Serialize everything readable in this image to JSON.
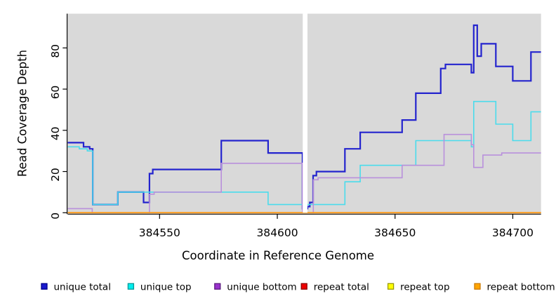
{
  "chart_data": {
    "type": "line",
    "style": "step",
    "xlabel": "Coordinate in Reference Genome",
    "ylabel": "Read Coverage Depth",
    "xlim": [
      384511,
      384712
    ],
    "ylim": [
      0,
      96
    ],
    "x_ticks": [
      "384550",
      "384600",
      "384650",
      "384700"
    ],
    "x_tick_values": [
      384550,
      384600,
      384650,
      384700
    ],
    "y_ticks": [
      "0",
      "20",
      "40",
      "60",
      "80"
    ],
    "y_tick_values": [
      0,
      20,
      40,
      60,
      80
    ],
    "grid": false,
    "plot_bg": "#d9d9d9",
    "legend_position": "bottom",
    "gap_band": {
      "x0": 384610.8,
      "x1": 384612.8,
      "color": "#ffffff"
    },
    "series": [
      {
        "name": "unique total",
        "line_color": "#2424ce",
        "legend_fill": "#1a1acd",
        "legend_border": "#00008b",
        "line_width": 2.2,
        "steps": [
          [
            384511.0,
            34
          ],
          [
            384517.7,
            32
          ],
          [
            384520.3,
            31
          ],
          [
            384521.6,
            4
          ],
          [
            384532.3,
            10
          ],
          [
            384543.2,
            5
          ],
          [
            384545.7,
            19
          ],
          [
            384547.1,
            21
          ],
          [
            384576.2,
            35
          ],
          [
            384596.1,
            29
          ],
          [
            384610.7,
            2
          ],
          [
            384612.8,
            3
          ],
          [
            384613.8,
            5
          ],
          [
            384615.2,
            18
          ],
          [
            384616.6,
            20
          ],
          [
            384628.7,
            31
          ],
          [
            384635.2,
            39
          ],
          [
            384653.0,
            45
          ],
          [
            384658.8,
            58
          ],
          [
            384669.4,
            70
          ],
          [
            384671.4,
            72
          ],
          [
            384682.4,
            68
          ],
          [
            384683.4,
            91
          ],
          [
            384684.9,
            76
          ],
          [
            384686.6,
            82
          ],
          [
            384692.8,
            71
          ],
          [
            384700.0,
            64
          ],
          [
            384707.7,
            78
          ]
        ]
      },
      {
        "name": "unique top",
        "line_color": "#4adcec",
        "legend_fill": "#00eeee",
        "legend_border": "#009999",
        "line_width": 1.6,
        "steps": [
          [
            384511.0,
            32
          ],
          [
            384515.9,
            31
          ],
          [
            384519.3,
            30
          ],
          [
            384521.6,
            4
          ],
          [
            384532.3,
            10
          ],
          [
            384596.1,
            4
          ],
          [
            384628.7,
            15
          ],
          [
            384635.2,
            23
          ],
          [
            384658.8,
            35
          ],
          [
            384682.4,
            32
          ],
          [
            384683.4,
            54
          ],
          [
            384692.8,
            43
          ],
          [
            384700.0,
            35
          ],
          [
            384707.7,
            49
          ]
        ]
      },
      {
        "name": "unique bottom",
        "line_color": "#b990dc",
        "legend_fill": "#9932cc",
        "legend_border": "#5c1a80",
        "line_width": 1.6,
        "steps": [
          [
            384511.0,
            2
          ],
          [
            384521.4,
            0
          ],
          [
            384545.7,
            9
          ],
          [
            384547.7,
            10
          ],
          [
            384576.2,
            24
          ],
          [
            384610.7,
            0
          ],
          [
            384615.3,
            16
          ],
          [
            384617.3,
            17
          ],
          [
            384653.0,
            23
          ],
          [
            384670.8,
            38
          ],
          [
            384682.4,
            33
          ],
          [
            384683.4,
            22
          ],
          [
            384687.3,
            28
          ],
          [
            384695.3,
            29
          ]
        ]
      },
      {
        "name": "repeat total",
        "line_color": "#cc1111",
        "legend_fill": "#ee0000",
        "legend_border": "#8b0000",
        "line_width": 1.6,
        "steps": [
          [
            384511.0,
            0
          ]
        ]
      },
      {
        "name": "repeat top",
        "line_color": "#e8e800",
        "legend_fill": "#ffff00",
        "legend_border": "#999900",
        "line_width": 1.6,
        "steps": [
          [
            384511.0,
            0
          ]
        ]
      },
      {
        "name": "repeat bottom",
        "line_color": "#ff9c1a",
        "legend_fill": "#ffa500",
        "legend_border": "#cc7a00",
        "line_width": 2.0,
        "steps": [
          [
            384511.0,
            0
          ]
        ]
      }
    ]
  }
}
